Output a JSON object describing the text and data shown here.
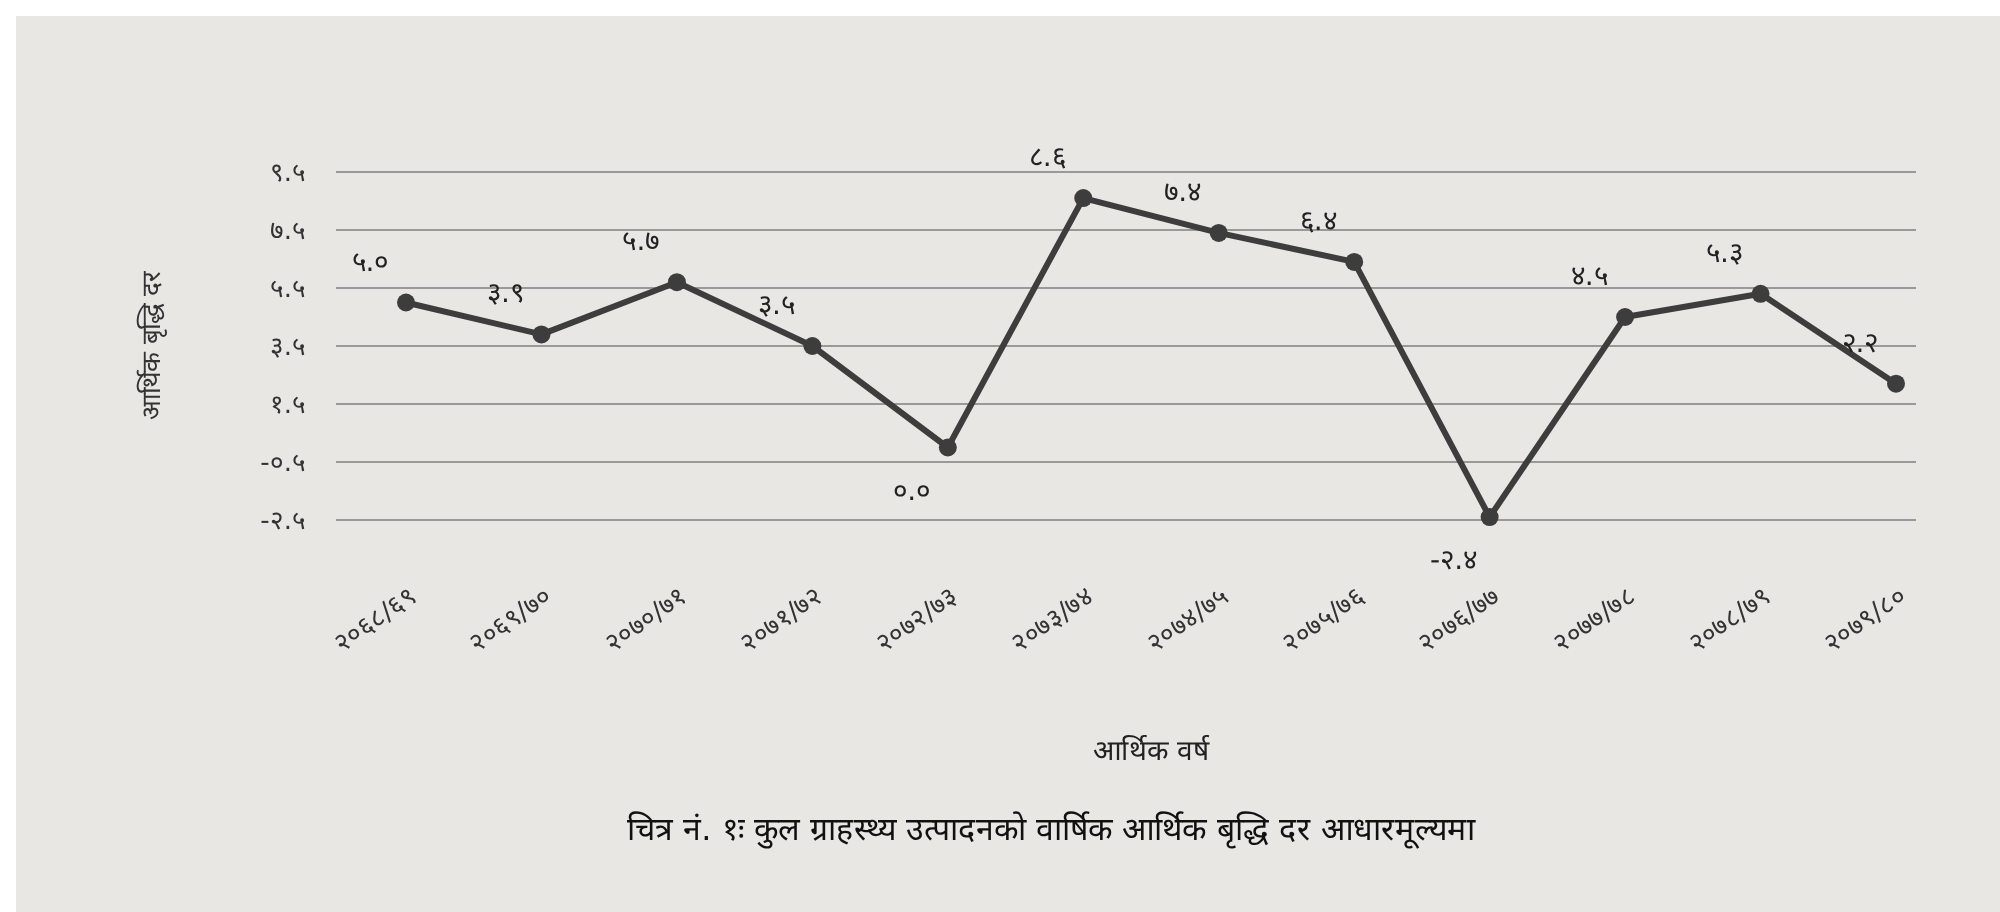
{
  "chart_data": {
    "type": "line",
    "title": "चित्र नं. १ः कुल ग्राहस्थ्य उत्पादनको वार्षिक आर्थिक बृद्धि दर आधारमूल्यमा",
    "xlabel": "आर्थिक वर्ष",
    "ylabel": "आर्थिक बृद्धि दर",
    "categories": [
      "२०६८/६९",
      "२०६९/७०",
      "२०७०/७१",
      "२०७१/७२",
      "२०७२/७३",
      "२०७३/७४",
      "२०७४/७५",
      "२०७५/७६",
      "२०७६/७७",
      "२०७७/७८",
      "२०७८/७९",
      "२०७९/८०"
    ],
    "series": [
      {
        "color": "#3d3d3d",
        "values": [
          5.0,
          3.9,
          5.7,
          3.5,
          0.0,
          8.6,
          7.4,
          6.4,
          -2.4,
          4.5,
          5.3,
          2.2
        ],
        "value_labels": [
          "५.०",
          "३.९",
          "५.७",
          "३.५",
          "०.०",
          "८.६",
          "७.४",
          "६.४",
          "-२.४",
          "४.५",
          "५.३",
          "२.२"
        ]
      }
    ],
    "ylim": [
      -2.5,
      9.5
    ],
    "yticks": [
      {
        "value": -2.5,
        "label": "-२.५"
      },
      {
        "value": -0.5,
        "label": "-०.५"
      },
      {
        "value": 1.5,
        "label": "१.५"
      },
      {
        "value": 3.5,
        "label": "३.५"
      },
      {
        "value": 5.5,
        "label": "५.५"
      },
      {
        "value": 7.5,
        "label": "७.५"
      },
      {
        "value": 9.5,
        "label": "९.५"
      }
    ],
    "grid": "y",
    "marker": "circle",
    "line_style": "solid"
  }
}
